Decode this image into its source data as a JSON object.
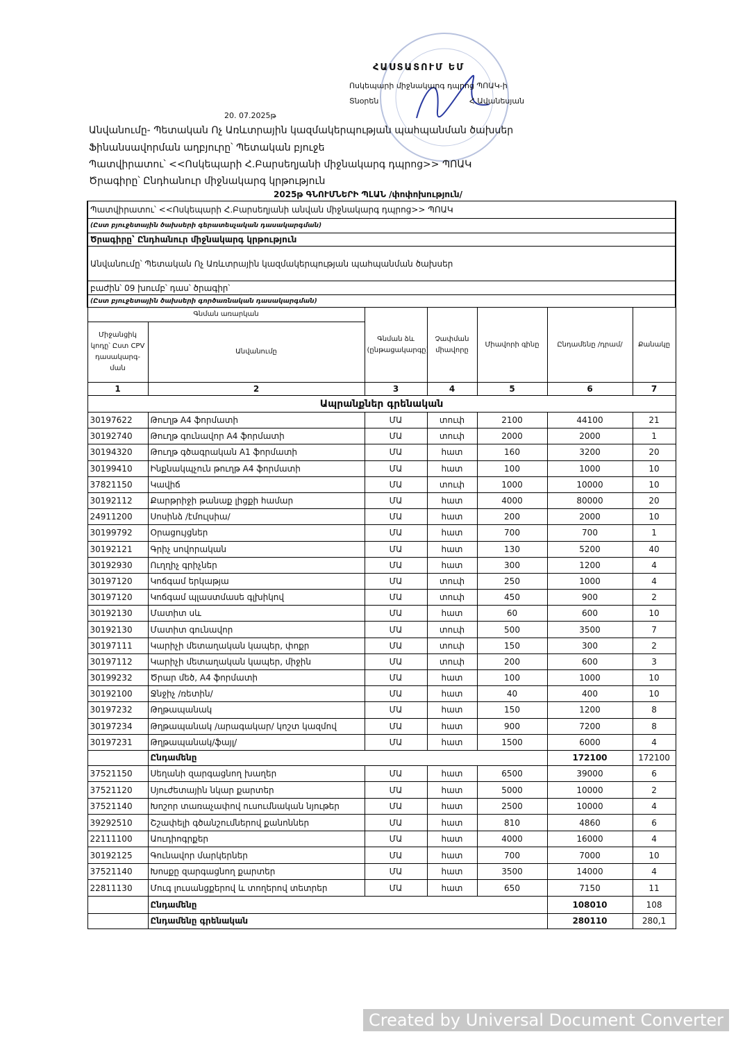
{
  "approval": {
    "title": "ՀԱՍՏԱՏՈՒՄ ԵՄ",
    "organization": "Ոսկեպարի միջնակարգ դպրոց ՊՈԱԿ-ի",
    "position": "Տնօրեն",
    "name": "Հ.Ավանեսյան"
  },
  "date": "20. 07.2025թ",
  "intro": [
    "Անվանումը- Պետական Ոչ Առևտրային կազմակերպության պահպանման ծախսեր",
    "Ֆինանսավորման աղբյուրը՝ Պետական բյուջե",
    "Պատվիրատու՝ <<Ոսկեպարի Հ.Բարսեղյանի միջնակարգ դպրոց>> ՊՈԱԿ",
    "Ծրագիրը՝ Ընդհանուր միջնակարգ կրթություն"
  ],
  "title": "2025թ ԳՆՈՒՄՆԵՐԻ ՊԼԱՆ /փոփոխություն/",
  "table": {
    "info_rows": [
      "Պատվիրատու՝ <<Ոսկեպարի Հ.Բարսեղյանի անվան միջնակարգ դպրոց>> ՊՈԱԿ",
      "(Ըստ բյուջետային ծախսերի գերատեսչական դասակարգման)",
      "Ծրագիրը՝ Ընդհանուր միջնակարգ կրթություն",
      "Անվանումը՝ Պետական Ոչ Առևտրային կազմակերպության պահպանման ծախսեր",
      "բաժին՝ 09 խումբ՝    դաս՝  ծրագիր՝",
      "(Ըստ բյուջետային ծախսերի գործառնական դասակարգման)"
    ],
    "header": {
      "group": "Գնման առարկան",
      "columns": [
        "Միջանցիկ կոդը՝ Ըստ CPV դասակարգ-ման",
        "Անվանումը",
        "Գնման ձև (ընթացակարգը)",
        "Չափման միավորը",
        "Միավորի գինը",
        "Ընդամենը /դրամ/",
        "Քանակը"
      ],
      "numbers": [
        "1",
        "2",
        "3",
        "4",
        "5",
        "6",
        "7"
      ]
    },
    "section": "Ապրանքներ գրենական",
    "groups": [
      {
        "rows": [
          [
            "30197622",
            "Թուղթ A4 ֆորմատի",
            "ՄԱ",
            "տուփ",
            "2100",
            "44100",
            "21"
          ],
          [
            "30192740",
            "Թուղթ գունավոր A4 ֆորմատի",
            "ՄԱ",
            "տուփ",
            "2000",
            "2000",
            "1"
          ],
          [
            "30194320",
            "Թուղթ գծագրական A1 ֆորմատի",
            "ՄԱ",
            "հատ",
            "160",
            "3200",
            "20"
          ],
          [
            "30199410",
            "Ինքնակպչուն թուղթ A4 ֆորմատի",
            "ՄԱ",
            "հատ",
            "100",
            "1000",
            "10"
          ],
          [
            "37821150",
            "Կավիճ",
            "ՄԱ",
            "տուփ",
            "1000",
            "10000",
            "10"
          ],
          [
            "30192112",
            "Քարթրիջի թանաք լիցքի համար",
            "ՄԱ",
            "հատ",
            "4000",
            "80000",
            "20"
          ],
          [
            "24911200",
            "Սոսինձ /էմուլսիա/",
            "ՄԱ",
            "հատ",
            "200",
            "2000",
            "10"
          ],
          [
            "30199792",
            "Օրացույցներ",
            "ՄԱ",
            "հատ",
            "700",
            "700",
            "1"
          ],
          [
            "30192121",
            "Գրիչ սովորական",
            "ՄԱ",
            "հատ",
            "130",
            "5200",
            "40"
          ],
          [
            "30192930",
            "Ուղղիչ գրիչներ",
            "ՄԱ",
            "հատ",
            "300",
            "1200",
            "4"
          ],
          [
            "30197120",
            "Կոճգամ երկաթյա",
            "ՄԱ",
            "տուփ",
            "250",
            "1000",
            "4"
          ],
          [
            "30197120",
            "Կոճգամ պլաստմասե գլխիկով",
            "ՄԱ",
            "տուփ",
            "450",
            "900",
            "2"
          ],
          [
            "30192130",
            "Մատիտ սև",
            "ՄԱ",
            "հատ",
            "60",
            "600",
            "10"
          ],
          [
            "30192130",
            "Մատիտ գունավոր",
            "ՄԱ",
            "տուփ",
            "500",
            "3500",
            "7"
          ],
          [
            "30197111",
            "Կարիչի մետաղական կապեր, փոքր",
            "ՄԱ",
            "տուփ",
            "150",
            "300",
            "2"
          ],
          [
            "30197112",
            "Կարիչի մետաղական կապեր, միջին",
            "ՄԱ",
            "տուփ",
            "200",
            "600",
            "3"
          ],
          [
            "30199232",
            "Ծրար մեծ,  A4 ֆորմատի",
            "ՄԱ",
            "հատ",
            "100",
            "1000",
            "10"
          ],
          [
            "30192100",
            "Ջնջիչ /ռետին/",
            "ՄԱ",
            "հատ",
            "40",
            "400",
            "10"
          ],
          [
            "30197232",
            "Թղթապանակ",
            "ՄԱ",
            "հատ",
            "150",
            "1200",
            "8"
          ],
          [
            "30197234",
            "Թղթապանակ /արագակար/ կոշտ կազմով",
            "ՄԱ",
            "հատ",
            "900",
            "7200",
            "8"
          ],
          [
            "30197231",
            "Թղթապանակ/ֆայլ/",
            "ՄԱ",
            "հատ",
            "1500",
            "6000",
            "4"
          ]
        ],
        "total": {
          "label": "Ընդամենը",
          "sum": "172100",
          "qty": "172100"
        }
      },
      {
        "rows": [
          [
            "37521150",
            "Սեղանի զարգացնող խաղեր",
            "ՄԱ",
            "հատ",
            "6500",
            "39000",
            "6"
          ],
          [
            "37521120",
            "Սյուժետային նկար քարտեր",
            "ՄԱ",
            "հատ",
            "5000",
            "10000",
            "2"
          ],
          [
            "37521140",
            "Խոշոր տառաչափով ուսումնական նյութեր",
            "ՄԱ",
            "հատ",
            "2500",
            "10000",
            "4"
          ],
          [
            "39292510",
            "Շշափելի գծանշումներով քանոններ",
            "ՄԱ",
            "հատ",
            "810",
            "4860",
            "6"
          ],
          [
            "22111100",
            "Աուդիոգրքեր",
            "ՄԱ",
            "հատ",
            "4000",
            "16000",
            "4"
          ],
          [
            "30192125",
            "Գունավոր  մարկերներ",
            "ՄԱ",
            "հատ",
            "700",
            "7000",
            "10"
          ],
          [
            "37521140",
            "Խոսքը զարգացնող քարտեր",
            "ՄԱ",
            "հատ",
            "3500",
            "14000",
            "4"
          ],
          [
            "22811130",
            "Մուգ լուսանցքերով և տողերով տետրեր",
            "ՄԱ",
            "հատ",
            "650",
            "7150",
            "11"
          ]
        ],
        "total": {
          "label": "Ընդամենը",
          "sum": "108010",
          "qty": "108"
        }
      }
    ],
    "grand_total": {
      "label": "Ընդամենը գրենական",
      "sum": "280110",
      "qty": "280,1"
    }
  },
  "watermark": "Created by Universal Document Converter"
}
